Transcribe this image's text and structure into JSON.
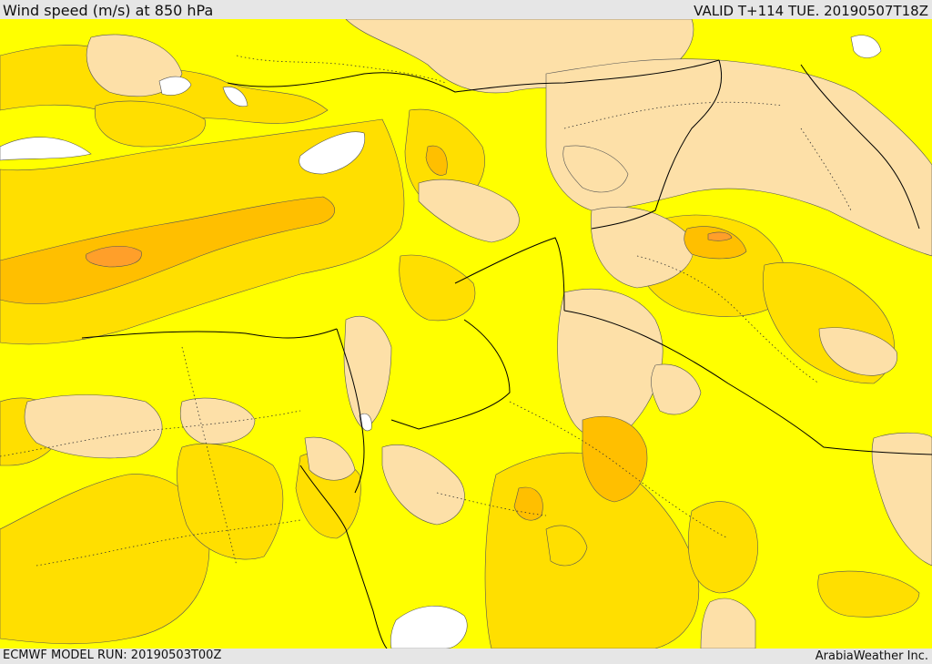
{
  "header": {
    "title": "Wind speed (m/s) at 850 hPa",
    "valid_time": "VALID T+114 TUE. 20190507T18Z"
  },
  "footer": {
    "model_run": "ECMWF MODEL RUN: 20190503T00Z",
    "credit": "ArabiaWeather Inc."
  },
  "legend_colors": {
    "calm": "#ffffff",
    "light": "#ffff00",
    "moderate": "#ffdf00",
    "pale": "#fde0a8",
    "strong": "#ffbf00",
    "very_strong": "#ff9f2a"
  }
}
